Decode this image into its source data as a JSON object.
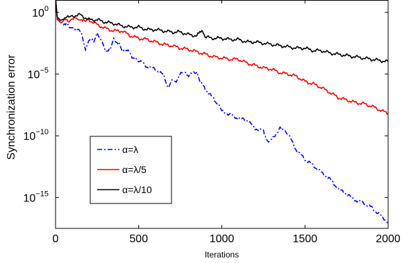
{
  "chart_data": {
    "type": "line",
    "title": "",
    "xlabel": "Iterations",
    "ylabel": "Synchronization error",
    "xlim": [
      0,
      2000
    ],
    "ylim_log10": [
      -17.5,
      1
    ],
    "yscale": "log",
    "grid": false,
    "legend_position": "lower-left",
    "x_ticks": [
      {
        "value": 0,
        "label": "0"
      },
      {
        "value": 500,
        "label": "500"
      },
      {
        "value": 1000,
        "label": "1000"
      },
      {
        "value": 1500,
        "label": "1500"
      },
      {
        "value": 2000,
        "label": "2000"
      }
    ],
    "y_ticks": [
      {
        "exp": 0,
        "base": "10",
        "sup": "0"
      },
      {
        "exp": -5,
        "base": "10",
        "sup": "−5"
      },
      {
        "exp": -10,
        "base": "10",
        "sup": "−10"
      },
      {
        "exp": -15,
        "base": "10",
        "sup": "−15"
      }
    ],
    "series": [
      {
        "name": "α=λ",
        "color": "#0000ff",
        "dash": "dashdot",
        "x": [
          0,
          10,
          30,
          60,
          100,
          130,
          160,
          180,
          200,
          230,
          250,
          280,
          300,
          330,
          350,
          380,
          400,
          430,
          460,
          500,
          550,
          600,
          650,
          680,
          700,
          720,
          760,
          800,
          850,
          870,
          900,
          950,
          980,
          1000,
          1050,
          1100,
          1150,
          1200,
          1250,
          1280,
          1300,
          1350,
          1380,
          1400,
          1450,
          1500,
          1550,
          1600,
          1650,
          1700,
          1750,
          1800,
          1850,
          1900,
          1950,
          2000
        ],
        "log10y": [
          1.2,
          -0.6,
          -0.9,
          -0.9,
          -1.3,
          -1.3,
          -1.8,
          -3.0,
          -2.2,
          -2.3,
          -1.6,
          -2.5,
          -3.1,
          -3.0,
          -2.2,
          -2.5,
          -3.2,
          -3.0,
          -3.6,
          -3.9,
          -4.4,
          -4.6,
          -5.1,
          -6.2,
          -5.5,
          -5.7,
          -4.8,
          -5.1,
          -4.8,
          -5.6,
          -6.2,
          -7.0,
          -7.5,
          -8.0,
          -8.3,
          -8.6,
          -8.7,
          -9.4,
          -9.6,
          -10.6,
          -10.3,
          -9.4,
          -9.5,
          -9.9,
          -11.2,
          -11.9,
          -12.4,
          -13.0,
          -13.5,
          -14.3,
          -14.7,
          -15.2,
          -15.4,
          -15.8,
          -16.4,
          -17.0
        ]
      },
      {
        "name": "α=λ/5",
        "color": "#ff0000",
        "dash": "solid",
        "x": [
          0,
          10,
          30,
          50,
          80,
          100,
          130,
          150,
          180,
          200,
          250,
          300,
          350,
          400,
          450,
          500,
          550,
          600,
          650,
          700,
          750,
          800,
          850,
          900,
          950,
          1000,
          1050,
          1100,
          1150,
          1200,
          1250,
          1300,
          1350,
          1400,
          1450,
          1500,
          1550,
          1600,
          1650,
          1700,
          1750,
          1800,
          1850,
          1900,
          1950,
          2000
        ],
        "log10y": [
          1.2,
          -0.5,
          -0.8,
          -0.6,
          -0.7,
          -0.5,
          -0.5,
          -0.5,
          -0.8,
          -0.6,
          -1.0,
          -1.3,
          -1.5,
          -1.5,
          -1.9,
          -2.1,
          -2.2,
          -2.4,
          -2.6,
          -2.7,
          -2.9,
          -3.0,
          -3.2,
          -3.4,
          -3.6,
          -3.7,
          -3.8,
          -3.8,
          -4.1,
          -4.3,
          -4.5,
          -4.6,
          -4.9,
          -5.0,
          -5.2,
          -5.6,
          -5.8,
          -6.1,
          -6.5,
          -6.9,
          -7.1,
          -7.3,
          -7.4,
          -7.6,
          -7.9,
          -8.2
        ]
      },
      {
        "name": "α=λ/10",
        "color": "#000000",
        "dash": "solid",
        "x": [
          0,
          10,
          30,
          50,
          80,
          100,
          150,
          200,
          250,
          300,
          350,
          400,
          450,
          500,
          550,
          600,
          650,
          700,
          750,
          800,
          850,
          880,
          900,
          950,
          1000,
          1050,
          1100,
          1150,
          1200,
          1250,
          1300,
          1350,
          1400,
          1450,
          1500,
          1550,
          1600,
          1650,
          1700,
          1750,
          1800,
          1850,
          1900,
          1950,
          2000
        ],
        "log10y": [
          1.2,
          -0.4,
          -0.7,
          -0.4,
          -0.4,
          -0.3,
          -0.2,
          -0.6,
          -0.6,
          -0.8,
          -0.9,
          -1.1,
          -1.2,
          -1.2,
          -1.4,
          -1.4,
          -1.5,
          -1.6,
          -1.6,
          -1.8,
          -1.9,
          -1.4,
          -2.0,
          -2.1,
          -2.1,
          -2.2,
          -2.2,
          -2.4,
          -2.4,
          -2.5,
          -2.6,
          -2.7,
          -2.8,
          -2.9,
          -2.9,
          -3.1,
          -3.1,
          -3.3,
          -3.4,
          -3.5,
          -3.6,
          -3.7,
          -3.8,
          -3.9,
          -4.0
        ]
      }
    ]
  }
}
